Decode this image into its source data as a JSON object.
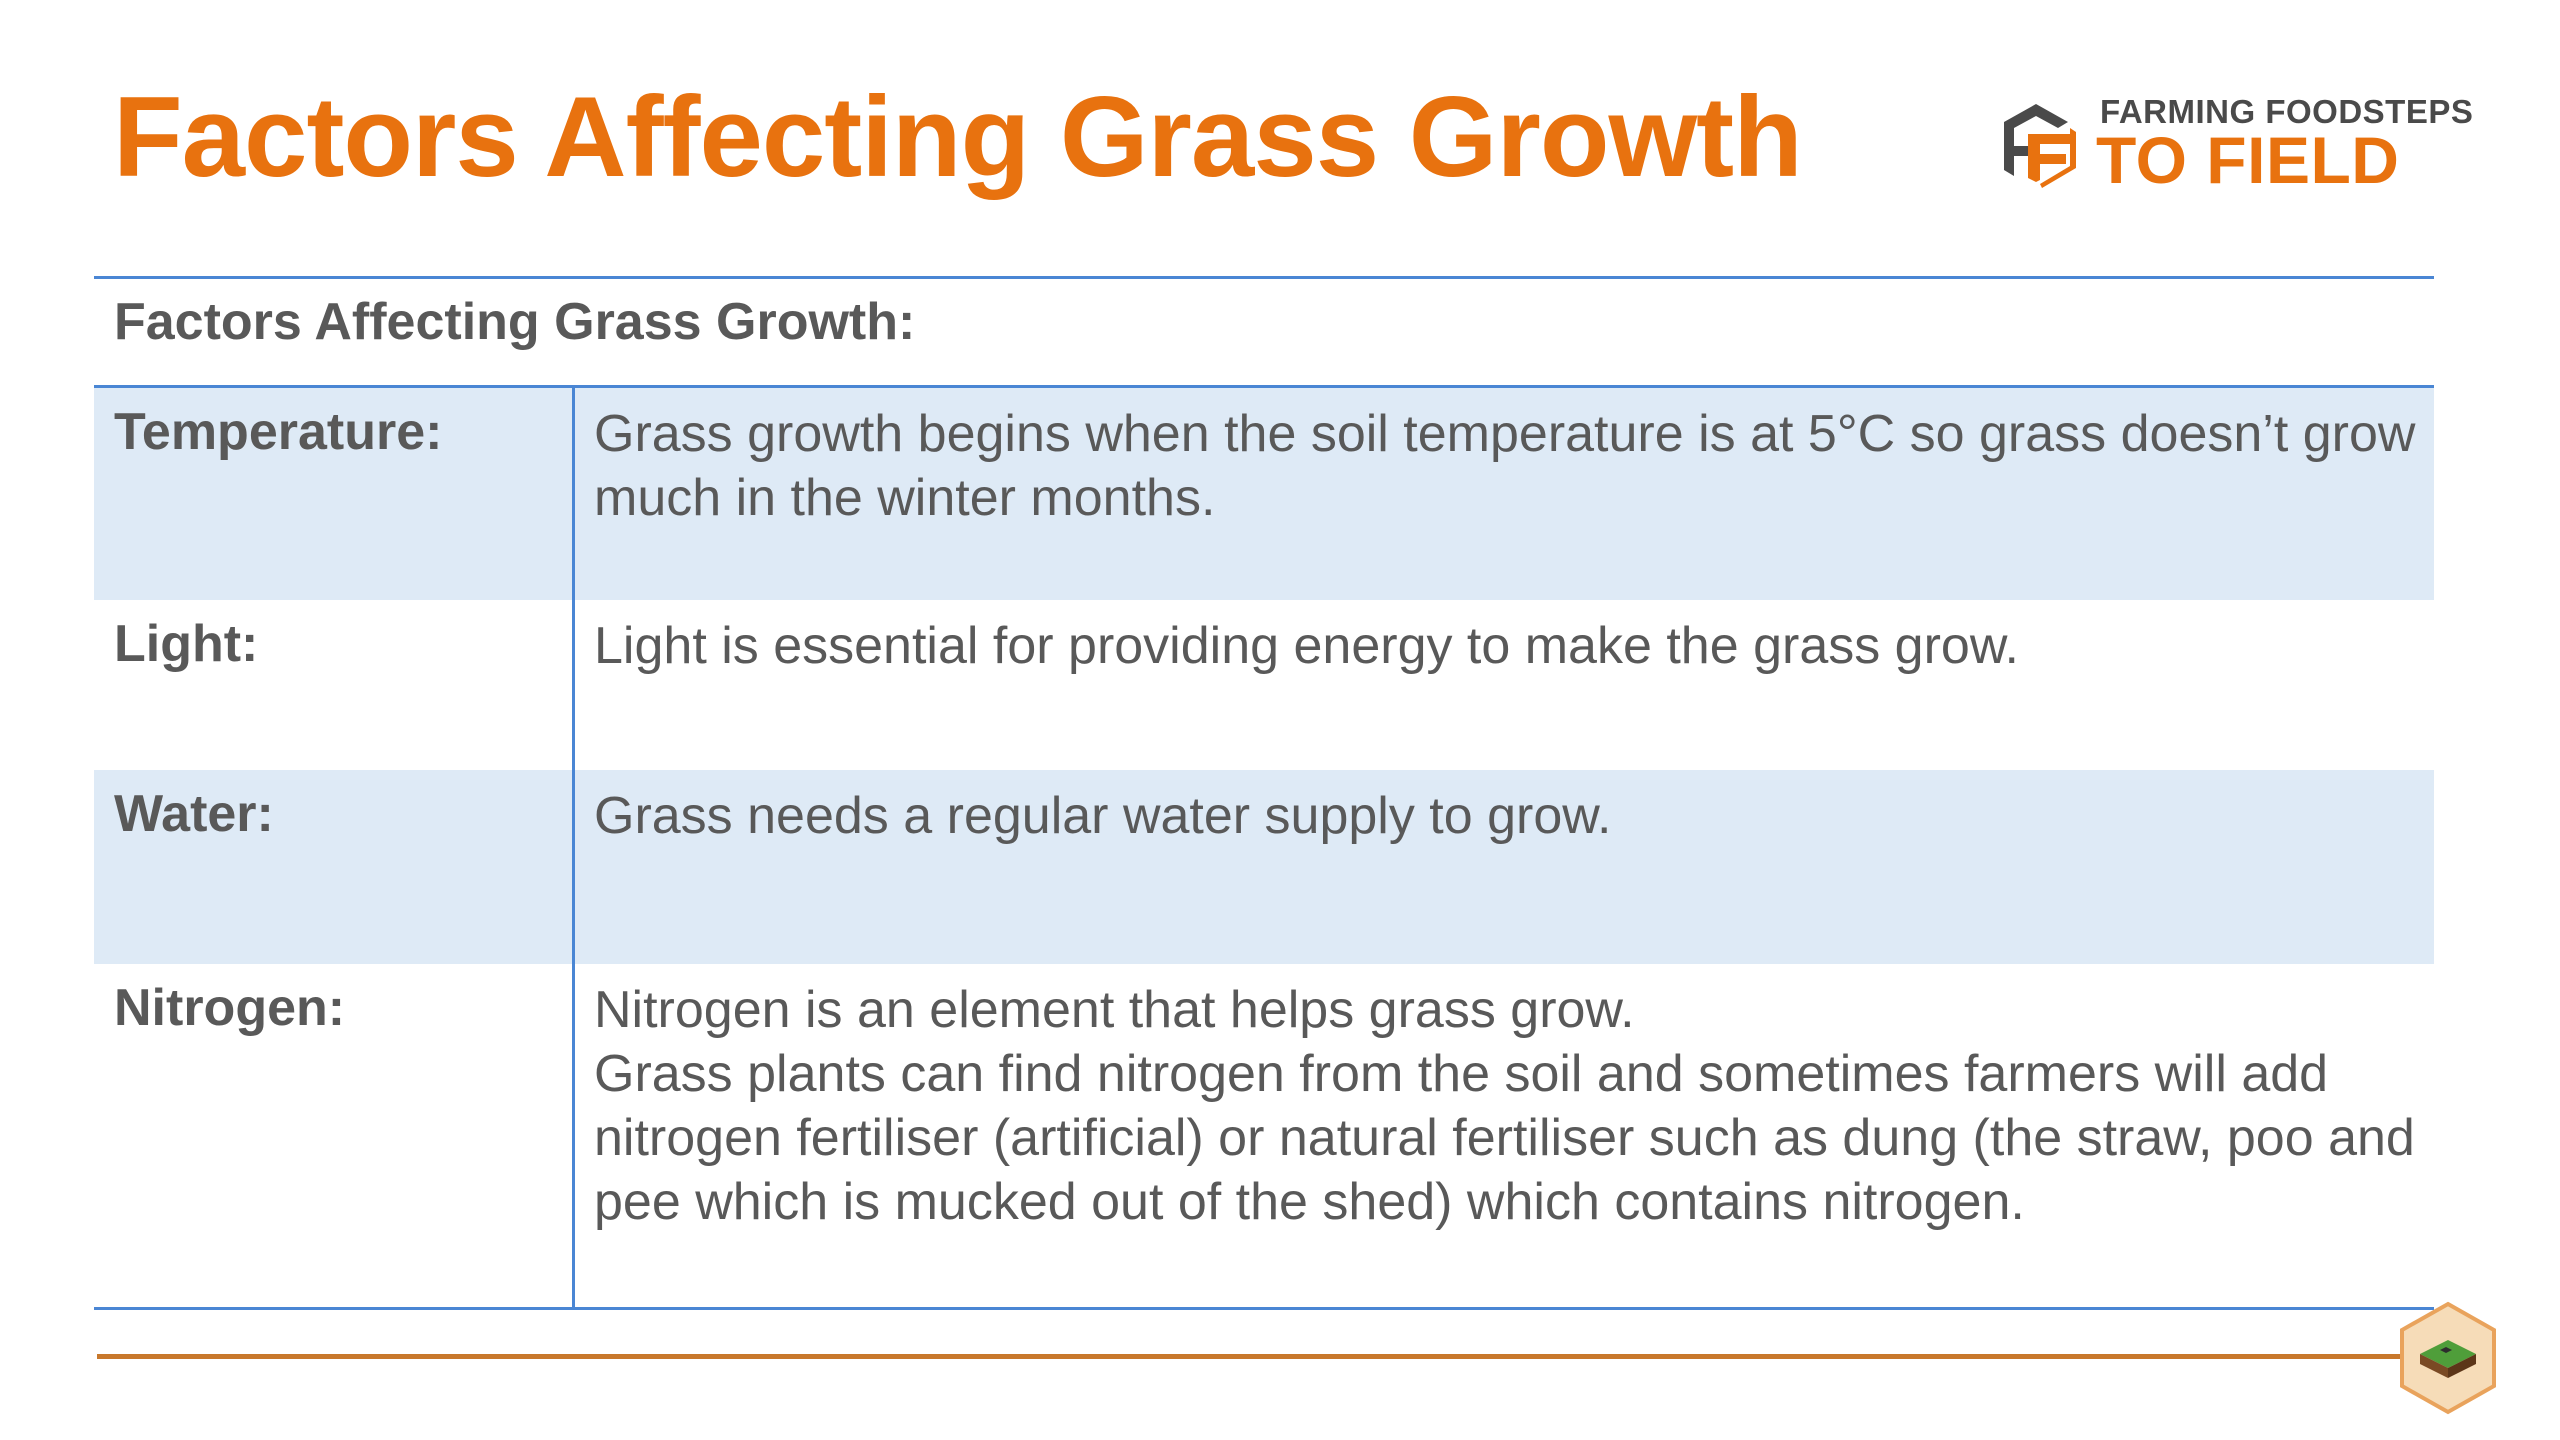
{
  "slide": {
    "title": "Factors Affecting Grass Growth",
    "logo": {
      "line1": "FARMING FOODSTEPS",
      "line2": "TO FIELD",
      "icon": "ff-logo-icon"
    },
    "table": {
      "header": "Factors Affecting Grass Growth:",
      "rows": [
        {
          "label": "Temperature:",
          "description": [
            "Grass growth begins when the soil temperature is at 5°C so grass doesn’t grow much in the winter months."
          ]
        },
        {
          "label": "Light:",
          "description": [
            "Light is essential for providing energy to make the grass grow."
          ]
        },
        {
          "label": "Water:",
          "description": [
            "Grass needs a regular water supply to grow."
          ]
        },
        {
          "label": "Nitrogen:",
          "description": [
            "Nitrogen is an element that helps grass grow.",
            "Grass plants can find nitrogen from the soil and sometimes farmers will add nitrogen fertiliser (artificial) or natural fertiliser such as dung (the straw, poo and pee which is mucked out of the shed) which contains nitrogen."
          ]
        }
      ]
    },
    "footer": {
      "badge_icon": "field-hexagon-icon"
    },
    "colors": {
      "accent": "#e8720f",
      "text": "#595959",
      "table_rule": "#4a86d4",
      "row_shade": "#deeaf6",
      "footer_line": "#c8782c"
    }
  }
}
